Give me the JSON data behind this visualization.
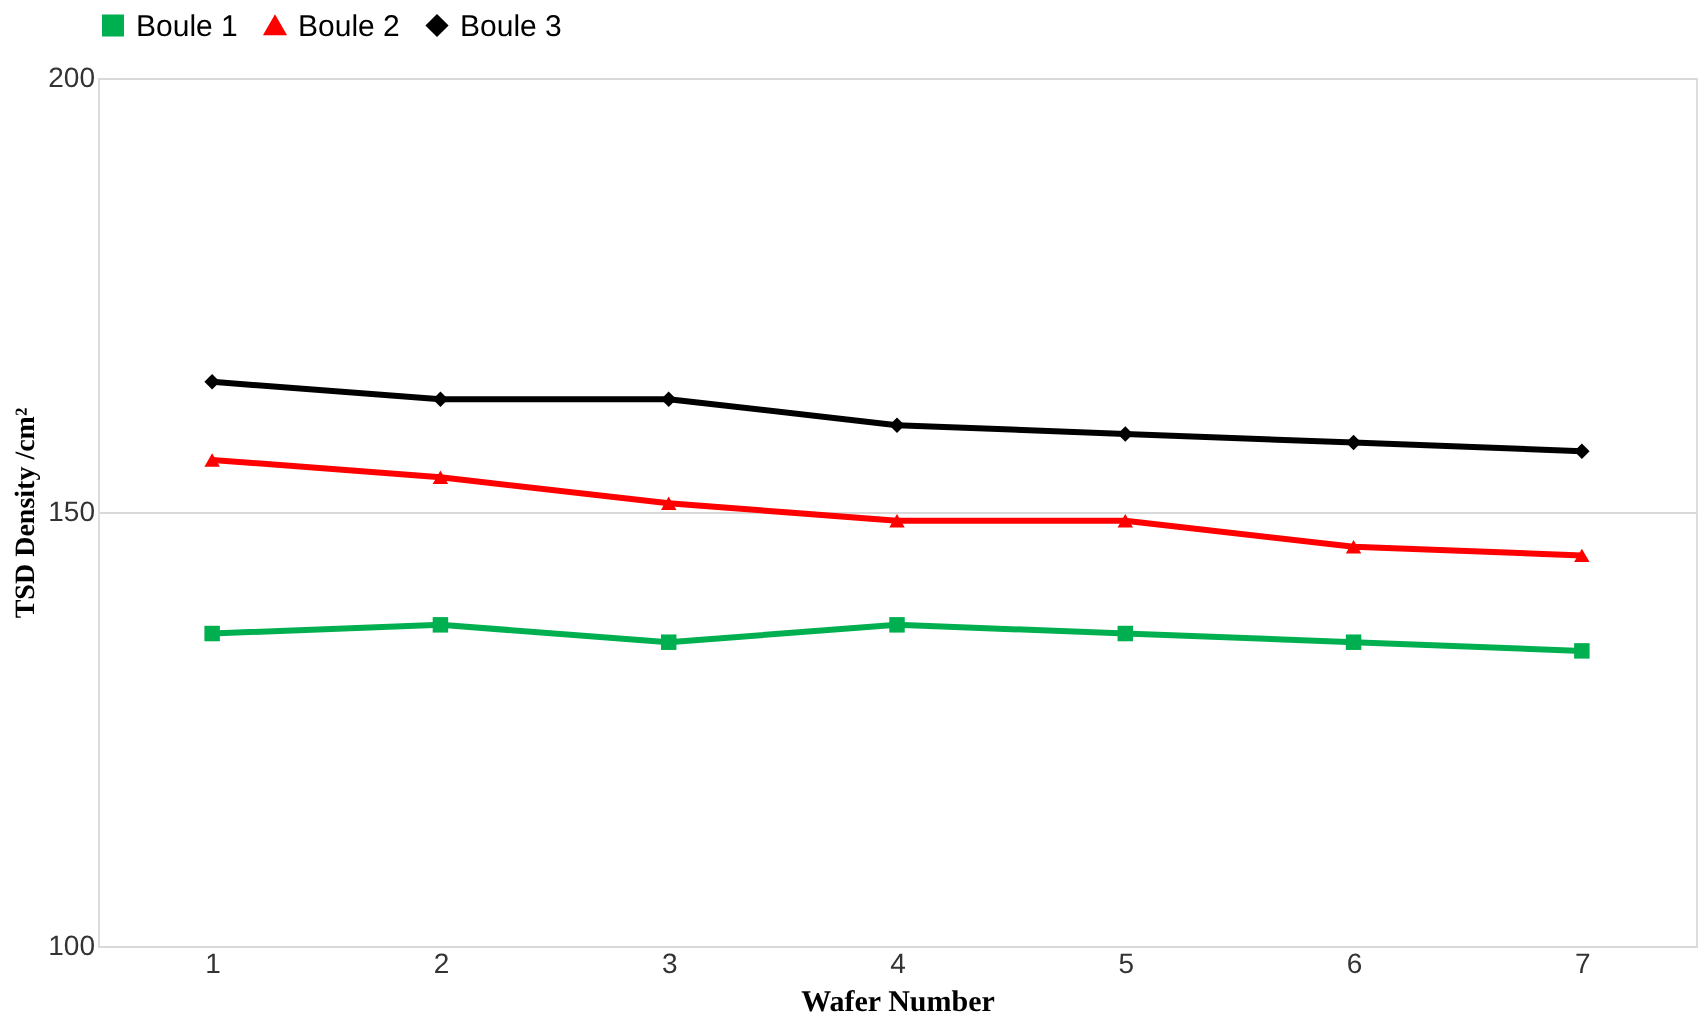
{
  "chart_data": {
    "type": "line",
    "xlabel": "Wafer Number",
    "ylabel": "TSD Density /cm²",
    "categories": [
      "1",
      "2",
      "3",
      "4",
      "5",
      "6",
      "7"
    ],
    "series": [
      {
        "name": "Boule 1",
        "color": "#00b050",
        "marker": "square",
        "values": [
          136,
          137,
          135,
          137,
          136,
          135,
          134
        ]
      },
      {
        "name": "Boule 2",
        "color": "#ff0000",
        "marker": "triangle",
        "values": [
          156,
          154,
          151,
          149,
          149,
          146,
          145
        ]
      },
      {
        "name": "Boule 3",
        "color": "#000000",
        "marker": "diamond",
        "values": [
          165,
          163,
          163,
          160,
          159,
          158,
          157
        ]
      }
    ],
    "ylim": [
      100,
      200
    ],
    "yticks": [
      100,
      150,
      200
    ],
    "grid": "y",
    "legend": "top",
    "line_style": "solid"
  }
}
